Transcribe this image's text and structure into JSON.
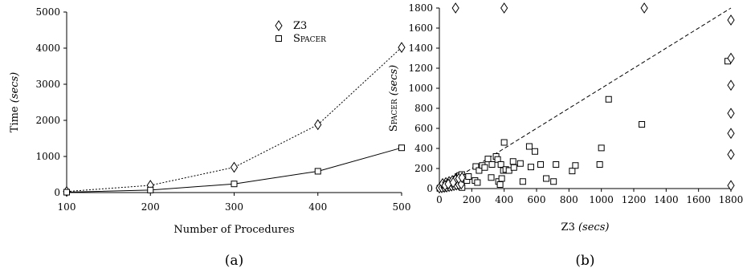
{
  "chart_data": [
    {
      "type": "line",
      "caption": "(a)",
      "xlabel": "Number of Procedures",
      "ylabel_main": "Time",
      "ylabel_unit": "(secs)",
      "x": [
        100,
        200,
        300,
        400,
        500
      ],
      "xlim": [
        100,
        500
      ],
      "ylim": [
        0,
        5000
      ],
      "xticks": [
        "100",
        "200",
        "300",
        "400",
        "500"
      ],
      "yticks": [
        "0",
        "1000",
        "2000",
        "3000",
        "4000",
        "5000"
      ],
      "legend_position": "top-right",
      "series": [
        {
          "name": "Z3",
          "marker": "diamond",
          "line": "dotted",
          "values": [
            30,
            200,
            700,
            1880,
            4020
          ]
        },
        {
          "name": "Spacer",
          "marker": "square",
          "line": "solid",
          "values": [
            10,
            70,
            240,
            590,
            1240
          ]
        }
      ]
    },
    {
      "type": "scatter",
      "caption": "(b)",
      "xlabel_main": "Z3",
      "xlabel_unit": "(secs)",
      "ylabel_main": "Spacer",
      "ylabel_unit": "(secs)",
      "xlim": [
        0,
        1800
      ],
      "ylim": [
        0,
        1800
      ],
      "xticks": [
        "0",
        "200",
        "400",
        "600",
        "800",
        "1000",
        "1200",
        "1400",
        "1600",
        "1800"
      ],
      "yticks": [
        "0",
        "200",
        "400",
        "600",
        "800",
        "1000",
        "1200",
        "1400",
        "1600",
        "1800"
      ],
      "diagonal": "dashed y=x",
      "squares": [
        [
          3,
          2
        ],
        [
          5,
          4
        ],
        [
          8,
          3
        ],
        [
          10,
          6
        ],
        [
          12,
          5
        ],
        [
          15,
          8
        ],
        [
          18,
          10
        ],
        [
          20,
          3
        ],
        [
          22,
          12
        ],
        [
          25,
          15
        ],
        [
          28,
          8
        ],
        [
          30,
          20
        ],
        [
          32,
          10
        ],
        [
          35,
          25
        ],
        [
          38,
          12
        ],
        [
          40,
          30
        ],
        [
          42,
          15
        ],
        [
          45,
          35
        ],
        [
          48,
          20
        ],
        [
          50,
          40
        ],
        [
          52,
          25
        ],
        [
          55,
          45
        ],
        [
          58,
          30
        ],
        [
          60,
          50
        ],
        [
          62,
          35
        ],
        [
          65,
          55
        ],
        [
          68,
          40
        ],
        [
          70,
          60
        ],
        [
          72,
          45
        ],
        [
          75,
          65
        ],
        [
          78,
          50
        ],
        [
          80,
          70
        ],
        [
          82,
          55
        ],
        [
          85,
          75
        ],
        [
          88,
          60
        ],
        [
          90,
          80
        ],
        [
          92,
          65
        ],
        [
          95,
          85
        ],
        [
          98,
          70
        ],
        [
          100,
          90
        ],
        [
          102,
          75
        ],
        [
          105,
          95
        ],
        [
          108,
          80
        ],
        [
          110,
          100
        ],
        [
          112,
          85
        ],
        [
          115,
          120
        ],
        [
          118,
          90
        ],
        [
          120,
          110
        ],
        [
          122,
          95
        ],
        [
          125,
          130
        ],
        [
          128,
          100
        ],
        [
          130,
          60
        ],
        [
          132,
          40
        ],
        [
          135,
          20
        ],
        [
          138,
          140
        ],
        [
          140,
          10
        ],
        [
          150,
          90
        ],
        [
          160,
          110
        ],
        [
          170,
          80
        ],
        [
          180,
          120
        ],
        [
          220,
          80
        ],
        [
          225,
          220
        ],
        [
          235,
          60
        ],
        [
          245,
          180
        ],
        [
          265,
          230
        ],
        [
          280,
          210
        ],
        [
          300,
          295
        ],
        [
          320,
          110
        ],
        [
          325,
          240
        ],
        [
          350,
          320
        ],
        [
          360,
          290
        ],
        [
          365,
          70
        ],
        [
          375,
          40
        ],
        [
          380,
          240
        ],
        [
          385,
          100
        ],
        [
          395,
          180
        ],
        [
          400,
          460
        ],
        [
          410,
          190
        ],
        [
          430,
          180
        ],
        [
          455,
          270
        ],
        [
          460,
          210
        ],
        [
          500,
          250
        ],
        [
          515,
          70
        ],
        [
          555,
          420
        ],
        [
          565,
          215
        ],
        [
          590,
          370
        ],
        [
          625,
          240
        ],
        [
          660,
          100
        ],
        [
          705,
          70
        ],
        [
          720,
          240
        ],
        [
          820,
          175
        ],
        [
          840,
          230
        ],
        [
          990,
          240
        ],
        [
          1000,
          405
        ],
        [
          1045,
          890
        ],
        [
          1250,
          640
        ],
        [
          1780,
          1270
        ]
      ],
      "diamonds": [
        [
          100,
          1800
        ],
        [
          400,
          1800
        ],
        [
          1265,
          1800
        ],
        [
          1800,
          1680
        ],
        [
          1800,
          1300
        ],
        [
          1800,
          1030
        ],
        [
          1800,
          750
        ],
        [
          1800,
          550
        ],
        [
          1800,
          340
        ],
        [
          1800,
          30
        ],
        [
          0,
          5
        ],
        [
          15,
          8
        ],
        [
          30,
          12
        ],
        [
          45,
          15
        ],
        [
          60,
          20
        ],
        [
          75,
          25
        ],
        [
          90,
          30
        ],
        [
          105,
          35
        ],
        [
          120,
          40
        ],
        [
          135,
          45
        ],
        [
          20,
          50
        ],
        [
          40,
          60
        ],
        [
          60,
          70
        ],
        [
          80,
          80
        ],
        [
          100,
          90
        ],
        [
          120,
          100
        ],
        [
          140,
          110
        ],
        [
          35,
          30
        ],
        [
          55,
          45
        ],
        [
          85,
          60
        ]
      ]
    }
  ]
}
